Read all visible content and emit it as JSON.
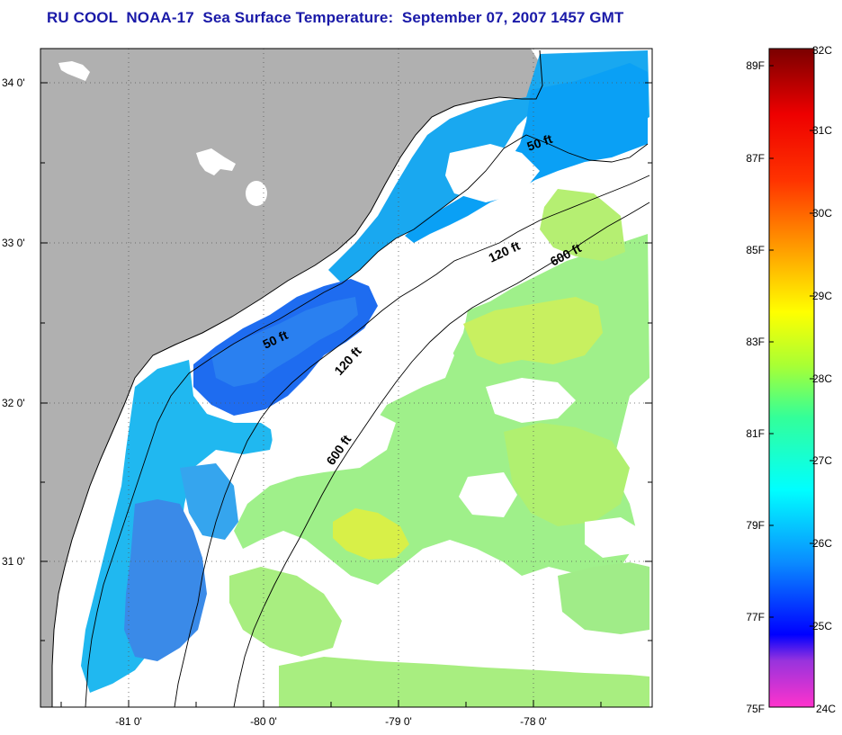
{
  "title": "RU COOL  NOAA-17  Sea Surface Temperature:  September 07, 2007 1457 GMT",
  "map": {
    "lat_labels": [
      "34 0'",
      "33 0'",
      "32 0'",
      "31 0'"
    ],
    "lon_labels": [
      "-81 0'",
      "-80 0'",
      "-79 0'",
      "-78 0'"
    ],
    "isobath_labels": [
      "50 ft",
      "120 ft",
      "600 ft",
      "50 ft",
      "120 ft",
      "600 ft"
    ],
    "colors": {
      "land": "#b0b0b0",
      "ocean_cloud": "#ffffff"
    }
  },
  "colorbar": {
    "fahrenheit_labels": [
      "89F",
      "87F",
      "85F",
      "83F",
      "81F",
      "79F",
      "77F",
      "75F"
    ],
    "celsius_labels": [
      "32C",
      "31C",
      "30C",
      "29C",
      "28C",
      "27C",
      "26C",
      "25C",
      "24C"
    ],
    "colors": [
      "#ff33cc",
      "#8a33e0",
      "#0000ff",
      "#0a8cff",
      "#00ffff",
      "#33ff99",
      "#aaff33",
      "#ffff00",
      "#ff9900",
      "#ff3300",
      "#ee0000",
      "#7a0000"
    ]
  }
}
